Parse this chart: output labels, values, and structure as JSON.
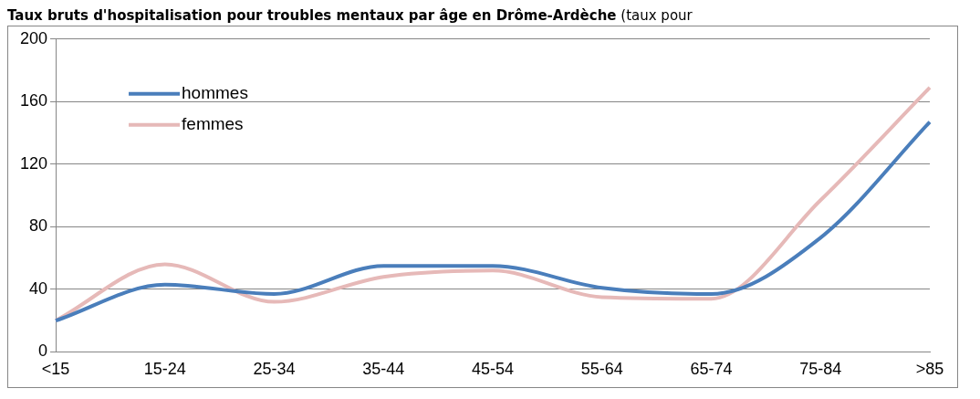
{
  "chart_data": {
    "type": "line",
    "title": "Taux bruts d'hospitalisation pour troubles mentaux par âge en Drôme-Ardèche",
    "subtitle": "(taux pour",
    "categories": [
      "<15",
      "15-24",
      "25-34",
      "35-44",
      "45-54",
      "55-64",
      "65-74",
      "75-84",
      ">85"
    ],
    "series": [
      {
        "name": "hommes",
        "color": "#4a7ebb",
        "values": [
          20,
          43,
          37,
          55,
          55,
          41,
          37,
          73,
          147
        ]
      },
      {
        "name": "femmes",
        "color": "#e6b9b8",
        "values": [
          20,
          56,
          32,
          48,
          52,
          35,
          34,
          97,
          169
        ]
      }
    ],
    "ylim": [
      0,
      200
    ],
    "yticks": [
      0,
      40,
      80,
      120,
      160,
      200
    ],
    "grid": "y",
    "legend": "top left",
    "marker": "none",
    "line_style": "solid"
  }
}
